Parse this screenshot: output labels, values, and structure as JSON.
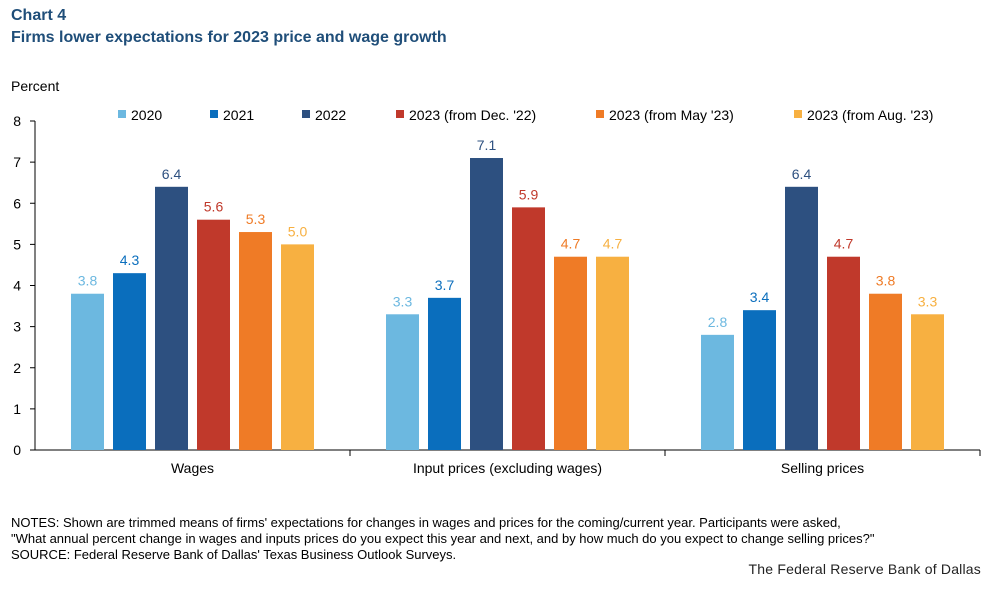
{
  "header": {
    "chart_number": "Chart 4",
    "title": "Firms lower expectations for 2023 price and wage growth"
  },
  "chart_data": {
    "type": "bar",
    "title": "Firms lower expectations for 2023 price and wage growth",
    "ylabel": "Percent",
    "xlabel": "",
    "ylim": [
      0,
      8
    ],
    "yticks": [
      "0",
      "1",
      "2",
      "3",
      "4",
      "5",
      "6",
      "7",
      "8"
    ],
    "grid": false,
    "legend_position": "top",
    "categories": [
      "Wages",
      "Input prices (excluding wages)",
      "Selling prices"
    ],
    "series": [
      {
        "name": "2020",
        "color": "#6cb8e0",
        "label_color": "#6cb8e0",
        "values": [
          3.8,
          3.3,
          2.8
        ],
        "labels": [
          "3.8",
          "3.3",
          "2.8"
        ]
      },
      {
        "name": "2021",
        "color": "#0a6ebd",
        "label_color": "#0a6ebd",
        "values": [
          4.3,
          3.7,
          3.4
        ],
        "labels": [
          "4.3",
          "3.7",
          "3.4"
        ]
      },
      {
        "name": "2022",
        "color": "#2d5080",
        "label_color": "#2d5080",
        "values": [
          6.4,
          7.1,
          6.4
        ],
        "labels": [
          "6.4",
          "7.1",
          "6.4"
        ]
      },
      {
        "name": "2023 (from Dec. '22)",
        "color": "#c0392b",
        "label_color": "#c0392b",
        "values": [
          5.6,
          5.9,
          4.7
        ],
        "labels": [
          "5.6",
          "5.9",
          "4.7"
        ]
      },
      {
        "name": "2023 (from May '23)",
        "color": "#ef7b26",
        "label_color": "#ef7b26",
        "values": [
          5.3,
          4.7,
          3.8
        ],
        "labels": [
          "5.3",
          "4.7",
          "3.8"
        ]
      },
      {
        "name": "2023 (from Aug. '23)",
        "color": "#f7b041",
        "label_color": "#f7b041",
        "values": [
          5.0,
          4.7,
          3.3
        ],
        "labels": [
          "5.0",
          "4.7",
          "3.3"
        ]
      }
    ]
  },
  "notes": {
    "line1": "NOTES: Shown are trimmed means of firms' expectations for changes in wages and prices for the coming/current year. Participants were asked,",
    "line2": "\"What annual percent change in wages and inputs prices do you expect this year and next, and by how much do you expect to change selling prices?\"",
    "source": "SOURCE: Federal Reserve Bank of Dallas' Texas Business Outlook Surveys."
  },
  "footer": {
    "brand": "The Federal Reserve Bank of Dallas"
  }
}
